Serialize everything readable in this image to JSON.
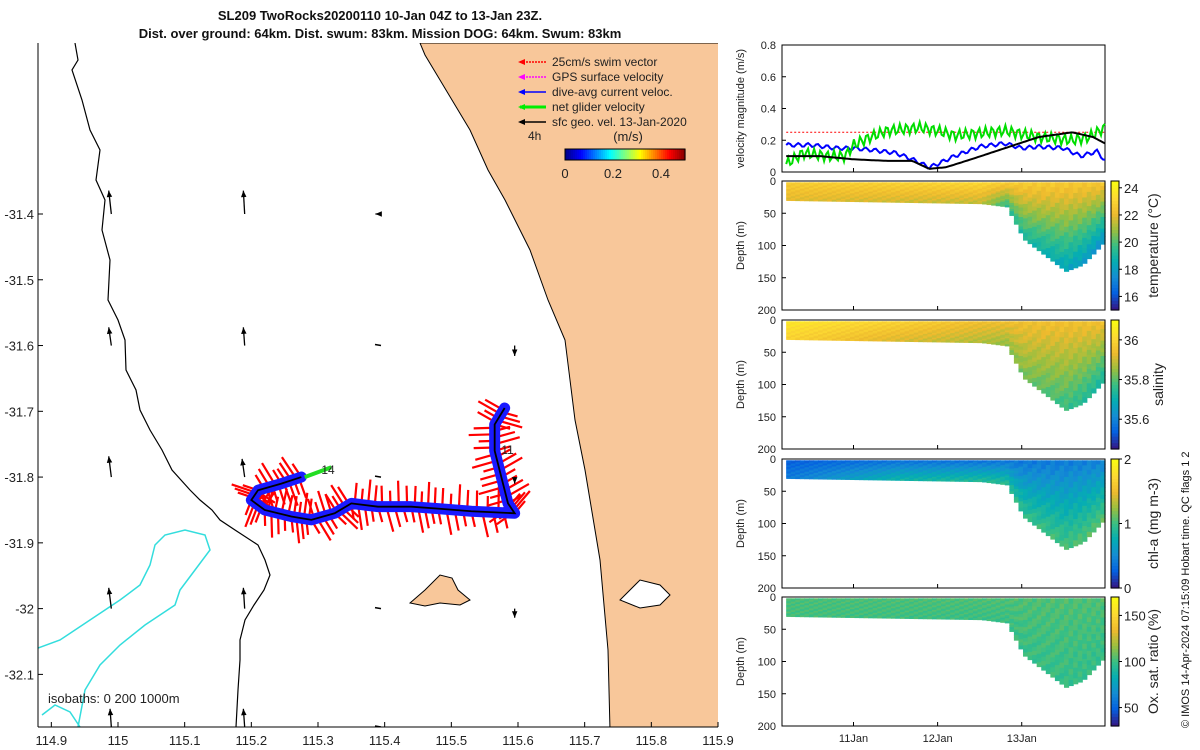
{
  "title_line1": "SL209 TwoRocks20200110 10-Jan 04Z to 13-Jan 23Z.",
  "title_line2": "Dist. over ground: 64km. Dist. swum: 83km. Mission DOG: 64km. Swum: 83km",
  "credit": "© IMOS 14-Apr-2024 07:15:09 Hobart time. QC flags 1  2",
  "chart_data": [
    {
      "type": "map",
      "name": "glider track map",
      "xlim": [
        114.88,
        115.9
      ],
      "ylim": [
        -32.18,
        -31.14
      ],
      "x_ticks": [
        114.9,
        115,
        115.1,
        115.2,
        115.3,
        115.4,
        115.5,
        115.6,
        115.7,
        115.8,
        115.9
      ],
      "x_tick_labels": [
        "114.9",
        "115",
        "115.1",
        "115.2",
        "115.3",
        "115.4",
        "115.5",
        "115.6",
        "115.7",
        "115.8",
        "115.9"
      ],
      "y_ticks": [
        -31.4,
        -31.5,
        -31.6,
        -31.7,
        -31.8,
        -31.9,
        -32.0,
        -32.1
      ],
      "y_tick_labels": [
        "-31.4",
        "-31.5",
        "-31.6",
        "-31.7",
        "-31.8",
        "-31.9",
        "-32",
        "-32.1"
      ],
      "legend": [
        {
          "label": "25cm/s swim vector",
          "color": "#ff0000"
        },
        {
          "label": "GPS surface velocity",
          "color": "#ff00ff"
        },
        {
          "label": "dive-avg current veloc.",
          "color": "#0000ff"
        },
        {
          "label": "net glider velocity",
          "color": "#00ee00"
        },
        {
          "label": "sfc geo. vel. 13-Jan-2020",
          "color": "#000000"
        }
      ],
      "legend_note": "4h",
      "colorbar": {
        "label": "(m/s)",
        "ticks": [
          0,
          0.2,
          0.4
        ],
        "tick_labels": [
          "0",
          "0.2",
          "0.4"
        ],
        "range": [
          0,
          0.5
        ]
      },
      "isobath_label": "isobaths: 0   200  1000m",
      "track": [
        [
          115.275,
          -31.8
        ],
        [
          115.245,
          -31.81
        ],
        [
          115.21,
          -31.82
        ],
        [
          115.2,
          -31.835
        ],
        [
          115.22,
          -31.85
        ],
        [
          115.26,
          -31.86
        ],
        [
          115.29,
          -31.865
        ],
        [
          115.325,
          -31.855
        ],
        [
          115.35,
          -31.84
        ],
        [
          115.39,
          -31.845
        ],
        [
          115.44,
          -31.845
        ],
        [
          115.48,
          -31.848
        ],
        [
          115.53,
          -31.852
        ],
        [
          115.595,
          -31.855
        ],
        [
          115.585,
          -31.84
        ],
        [
          115.575,
          -31.8
        ],
        [
          115.565,
          -31.76
        ],
        [
          115.565,
          -31.72
        ],
        [
          115.58,
          -31.695
        ]
      ],
      "track_labels": [
        {
          "text": "14",
          "lon": 115.305,
          "lat": -31.795
        },
        {
          "text": "11",
          "lon": 115.575,
          "lat": -31.765
        }
      ],
      "sfc_vectors": [
        {
          "lon": 114.99,
          "lat": -31.4,
          "u": -0.02,
          "v": 0.18
        },
        {
          "lon": 115.19,
          "lat": -31.4,
          "u": -0.01,
          "v": 0.18
        },
        {
          "lon": 115.39,
          "lat": -31.4,
          "u": -0.02,
          "v": 0.0
        },
        {
          "lon": 114.99,
          "lat": -31.6,
          "u": -0.02,
          "v": 0.14
        },
        {
          "lon": 115.19,
          "lat": -31.6,
          "u": -0.01,
          "v": 0.14
        },
        {
          "lon": 115.39,
          "lat": -31.6,
          "u": -0.01,
          "v": 0.0
        },
        {
          "lon": 115.595,
          "lat": -31.6,
          "u": 0.0,
          "v": -0.08
        },
        {
          "lon": 114.99,
          "lat": -31.8,
          "u": -0.02,
          "v": 0.16
        },
        {
          "lon": 115.19,
          "lat": -31.8,
          "u": -0.02,
          "v": 0.14
        },
        {
          "lon": 115.39,
          "lat": -31.8,
          "u": -0.01,
          "v": 0.01
        },
        {
          "lon": 115.595,
          "lat": -31.8,
          "u": 0.0,
          "v": -0.05
        },
        {
          "lon": 114.99,
          "lat": -32.0,
          "u": -0.02,
          "v": 0.16
        },
        {
          "lon": 115.19,
          "lat": -32.0,
          "u": -0.01,
          "v": 0.16
        },
        {
          "lon": 115.39,
          "lat": -32.0,
          "u": -0.01,
          "v": 0.0
        },
        {
          "lon": 115.595,
          "lat": -32.0,
          "u": 0.0,
          "v": -0.07
        },
        {
          "lon": 114.99,
          "lat": -32.18,
          "u": -0.01,
          "v": 0.14
        },
        {
          "lon": 115.19,
          "lat": -32.18,
          "u": -0.01,
          "v": 0.14
        },
        {
          "lon": 115.39,
          "lat": -32.18,
          "u": -0.01,
          "v": 0.0
        }
      ]
    },
    {
      "type": "line",
      "name": "velocity magnitude",
      "ylabel": "velocity magnitude (m/s)",
      "ylim": [
        0,
        0.8
      ],
      "y_ticks": [
        0,
        0.2,
        0.4,
        0.6,
        0.8
      ],
      "y_tick_labels": [
        "0",
        "0.2",
        "0.4",
        "0.6",
        "0.8"
      ],
      "xlim": [
        10.15,
        13.99
      ],
      "x_ticks": [
        11,
        12,
        13
      ],
      "x_tick_labels": [
        "11Jan",
        "12Jan",
        "13Jan"
      ],
      "series": [
        {
          "name": "25cm/s swim vector",
          "color": "#ff0000",
          "x": [
            10.2,
            13.99
          ],
          "y": [
            0.25,
            0.25
          ]
        },
        {
          "name": "dive-avg current veloc.",
          "color": "#0000ff",
          "x": [
            10.2,
            10.5,
            10.8,
            11.0,
            11.2,
            11.5,
            11.7,
            11.9,
            12.0,
            12.2,
            12.5,
            12.8,
            13.0,
            13.2,
            13.5,
            13.7,
            13.9,
            13.99
          ],
          "y": [
            0.17,
            0.17,
            0.15,
            0.15,
            0.14,
            0.12,
            0.08,
            0.03,
            0.05,
            0.1,
            0.16,
            0.18,
            0.15,
            0.16,
            0.15,
            0.1,
            0.13,
            0.07
          ]
        },
        {
          "name": "net glider velocity",
          "color": "#00dd00",
          "x": [
            10.2,
            10.4,
            10.7,
            10.9,
            11.0,
            11.2,
            11.4,
            11.6,
            11.8,
            12.0,
            12.2,
            12.4,
            12.6,
            12.8,
            13.0,
            13.2,
            13.4,
            13.6,
            13.8,
            13.99
          ],
          "y": [
            0.05,
            0.12,
            0.1,
            0.1,
            0.17,
            0.22,
            0.26,
            0.27,
            0.28,
            0.26,
            0.23,
            0.24,
            0.25,
            0.26,
            0.24,
            0.22,
            0.21,
            0.2,
            0.22,
            0.28
          ]
        },
        {
          "name": "sfc geo. vel.",
          "color": "#000000",
          "x": [
            10.2,
            10.6,
            11.0,
            11.4,
            11.7,
            11.9,
            12.1,
            12.4,
            12.8,
            13.2,
            13.6,
            13.85,
            13.99
          ],
          "y": [
            0.1,
            0.1,
            0.08,
            0.07,
            0.07,
            0.02,
            0.03,
            0.08,
            0.15,
            0.22,
            0.25,
            0.22,
            0.18
          ]
        }
      ]
    },
    {
      "type": "heatmap",
      "name": "temperature",
      "colorbar_label": "temperature (°C)",
      "clim": [
        15,
        24.5
      ],
      "colorbar_ticks": [
        16,
        18,
        20,
        22,
        24
      ],
      "colorbar_tick_labels": [
        "16",
        "18",
        "20",
        "22",
        "24"
      ],
      "ylabel": "Depth (m)",
      "ylim": [
        0,
        200
      ],
      "y_ticks": [
        0,
        50,
        100,
        150,
        200
      ],
      "y_tick_labels": [
        "0",
        "50",
        "100",
        "150",
        "200"
      ],
      "xlim": [
        10.15,
        13.99
      ],
      "bottom_depth": {
        "x": [
          10.2,
          12.5,
          12.8,
          13.0,
          13.3,
          13.5,
          13.7,
          13.85,
          13.99
        ],
        "y": [
          30,
          35,
          40,
          90,
          120,
          140,
          130,
          110,
          90
        ]
      },
      "layers": [
        {
          "x": [
            10.2,
            12.5,
            12.8,
            13.99
          ],
          "surface": [
            22.8,
            23.2,
            22.8,
            22.5
          ],
          "deep": [
            22.0,
            21.5,
            19.5,
            17.5
          ]
        }
      ]
    },
    {
      "type": "heatmap",
      "name": "salinity",
      "colorbar_label": "salinity",
      "clim": [
        35.45,
        36.1
      ],
      "colorbar_ticks": [
        35.6,
        35.8,
        36
      ],
      "colorbar_tick_labels": [
        "35.6",
        "35.8",
        "36"
      ],
      "ylabel": "Depth (m)",
      "ylim": [
        0,
        200
      ],
      "y_ticks": [
        0,
        50,
        100,
        150,
        200
      ],
      "y_tick_labels": [
        "0",
        "50",
        "100",
        "150",
        "200"
      ],
      "xlim": [
        10.15,
        13.99
      ],
      "bottom_depth": {
        "x": [
          10.2,
          12.5,
          12.8,
          13.0,
          13.3,
          13.5,
          13.7,
          13.85,
          13.99
        ],
        "y": [
          30,
          35,
          40,
          90,
          120,
          140,
          130,
          110,
          90
        ]
      },
      "layers": [
        {
          "x": [
            10.2,
            11.5,
            12.5,
            13.99
          ],
          "surface": [
            36.05,
            36.0,
            35.95,
            35.95
          ],
          "deep": [
            36.0,
            35.92,
            35.88,
            35.72
          ]
        }
      ]
    },
    {
      "type": "heatmap",
      "name": "chl-a",
      "colorbar_label": "chl-a (mg m-3)",
      "clim": [
        0,
        2
      ],
      "colorbar_ticks": [
        0,
        1,
        2
      ],
      "colorbar_tick_labels": [
        "0",
        "1",
        "2"
      ],
      "ylabel": "Depth (m)",
      "ylim": [
        0,
        200
      ],
      "y_ticks": [
        0,
        50,
        100,
        150,
        200
      ],
      "y_tick_labels": [
        "0",
        "50",
        "100",
        "150",
        "200"
      ],
      "xlim": [
        10.15,
        13.99
      ],
      "bottom_depth": {
        "x": [
          10.2,
          12.5,
          12.8,
          13.0,
          13.3,
          13.5,
          13.7,
          13.85,
          13.99
        ],
        "y": [
          30,
          35,
          40,
          90,
          120,
          140,
          130,
          110,
          90
        ]
      },
      "layers": [
        {
          "x": [
            10.2,
            11.5,
            12.5,
            13.99
          ],
          "surface": [
            0.25,
            0.35,
            0.35,
            0.45
          ],
          "deep": [
            0.4,
            0.8,
            0.9,
            1.1
          ]
        }
      ]
    },
    {
      "type": "heatmap",
      "name": "oxygen saturation",
      "colorbar_label": "Ox. sat. ratio (%)",
      "clim": [
        30,
        170
      ],
      "colorbar_ticks": [
        50,
        100,
        150
      ],
      "colorbar_tick_labels": [
        "50",
        "100",
        "150"
      ],
      "ylabel": "Depth (m)",
      "ylim": [
        0,
        200
      ],
      "y_ticks": [
        0,
        50,
        100,
        150,
        200
      ],
      "y_tick_labels": [
        "0",
        "50",
        "100",
        "150",
        "200"
      ],
      "xlim": [
        10.15,
        13.99
      ],
      "x_ticks": [
        11,
        12,
        13
      ],
      "x_tick_labels": [
        "11Jan",
        "12Jan",
        "13Jan"
      ],
      "bottom_depth": {
        "x": [
          10.2,
          12.5,
          12.8,
          13.0,
          13.3,
          13.5,
          13.7,
          13.85,
          13.99
        ],
        "y": [
          30,
          35,
          40,
          90,
          120,
          140,
          130,
          110,
          90
        ]
      },
      "layers": [
        {
          "x": [
            10.2,
            12.5,
            13.99
          ],
          "surface": [
            103,
            104,
            104
          ],
          "deep": [
            102,
            100,
            98
          ]
        }
      ]
    }
  ]
}
